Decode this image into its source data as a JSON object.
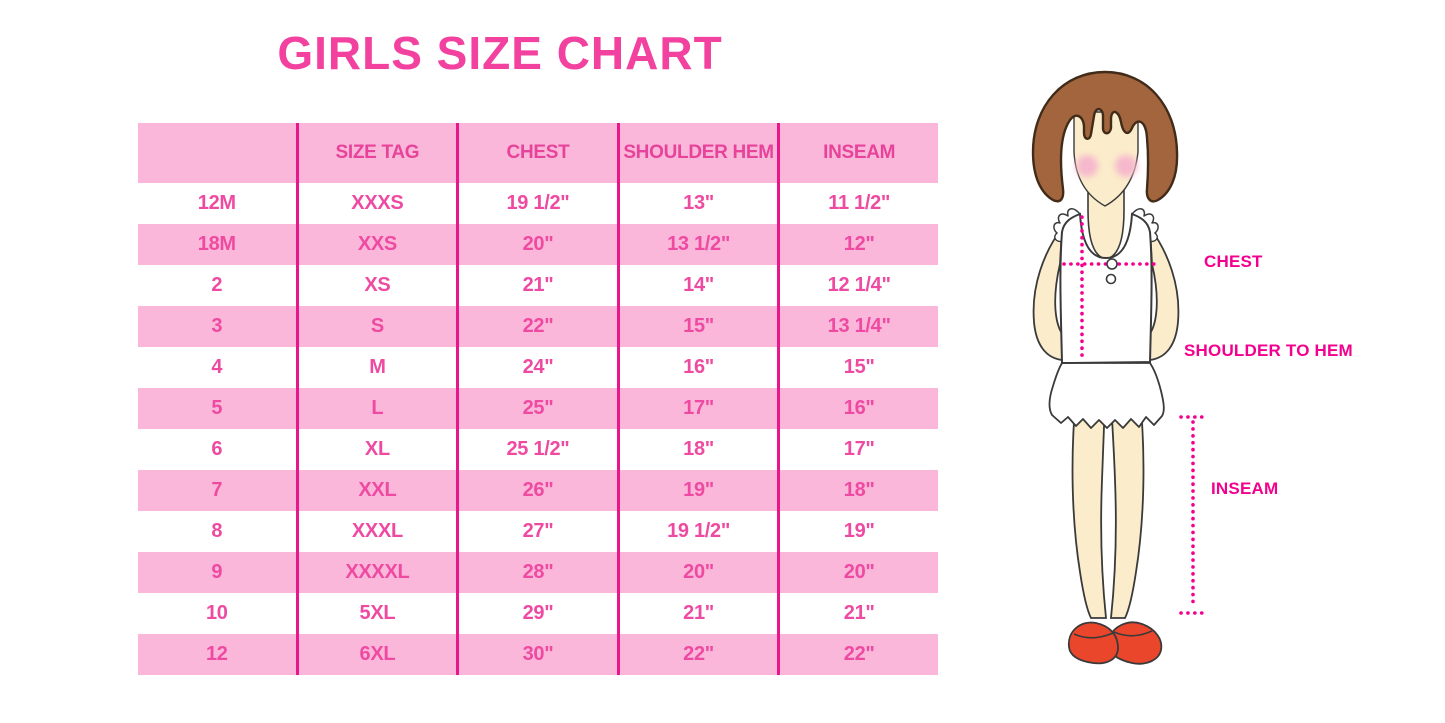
{
  "title": "GIRLS SIZE CHART",
  "table": {
    "columns": [
      "",
      "SIZE TAG",
      "CHEST",
      "SHOULDER HEM",
      "INSEAM"
    ],
    "rows": [
      [
        "12M",
        "XXXS",
        "19 1/2\"",
        "13\"",
        "11 1/2\""
      ],
      [
        "18M",
        "XXS",
        "20\"",
        "13 1/2\"",
        "12\""
      ],
      [
        "2",
        "XS",
        "21\"",
        "14\"",
        "12 1/4\""
      ],
      [
        "3",
        "S",
        "22\"",
        "15\"",
        "13 1/4\""
      ],
      [
        "4",
        "M",
        "24\"",
        "16\"",
        "15\""
      ],
      [
        "5",
        "L",
        "25\"",
        "17\"",
        "16\""
      ],
      [
        "6",
        "XL",
        "25 1/2\"",
        "18\"",
        "17\""
      ],
      [
        "7",
        "XXL",
        "26\"",
        "19\"",
        "18\""
      ],
      [
        "8",
        "XXXL",
        "27\"",
        "19 1/2\"",
        "19\""
      ],
      [
        "9",
        "XXXXL",
        "28\"",
        "20\"",
        "20\""
      ],
      [
        "10",
        "5XL",
        "29\"",
        "21\"",
        "21\""
      ],
      [
        "12",
        "6XL",
        "30\"",
        "22\"",
        "22\""
      ]
    ]
  },
  "diagram": {
    "labels": {
      "chest": "CHEST",
      "shoulder_to_hem": "SHOULDER TO HEM",
      "inseam": "INSEAM"
    }
  },
  "colors": {
    "title_pink": "#f2419e",
    "row_pink": "#fbb7da",
    "grid_magenta": "#ea168c",
    "cell_text": "#ef4aa2",
    "header_text": "#e7439a",
    "measure_magenta": "#f3008f",
    "hair_brown": "#a2653e",
    "skin": "#fbeccb",
    "shoe_red": "#e9462c"
  },
  "chart_data": {
    "type": "table",
    "title": "GIRLS SIZE CHART",
    "columns": [
      "",
      "SIZE TAG",
      "CHEST",
      "SHOULDER HEM",
      "INSEAM"
    ],
    "rows": [
      [
        "12M",
        "XXXS",
        "19 1/2\"",
        "13\"",
        "11 1/2\""
      ],
      [
        "18M",
        "XXS",
        "20\"",
        "13 1/2\"",
        "12\""
      ],
      [
        "2",
        "XS",
        "21\"",
        "14\"",
        "12 1/4\""
      ],
      [
        "3",
        "S",
        "22\"",
        "15\"",
        "13 1/4\""
      ],
      [
        "4",
        "M",
        "24\"",
        "16\"",
        "15\""
      ],
      [
        "5",
        "L",
        "25\"",
        "17\"",
        "16\""
      ],
      [
        "6",
        "XL",
        "25 1/2\"",
        "18\"",
        "17\""
      ],
      [
        "7",
        "XXL",
        "26\"",
        "19\"",
        "18\""
      ],
      [
        "8",
        "XXXL",
        "27\"",
        "19 1/2\"",
        "19\""
      ],
      [
        "9",
        "XXXXL",
        "28\"",
        "20\"",
        "20\""
      ],
      [
        "10",
        "5XL",
        "29\"",
        "21\"",
        "21\""
      ],
      [
        "12",
        "6XL",
        "30\"",
        "22\"",
        "22\""
      ]
    ],
    "annotations": [
      "CHEST",
      "SHOULDER TO HEM",
      "INSEAM"
    ]
  }
}
